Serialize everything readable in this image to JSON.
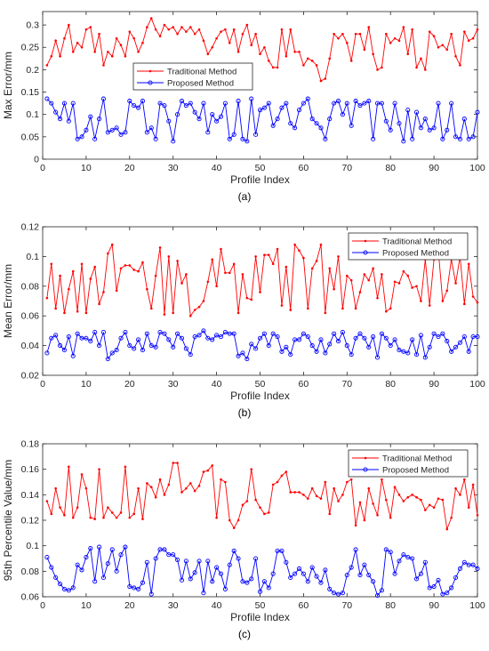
{
  "chart_data": [
    {
      "type": "line",
      "caption": "(a)",
      "xlabel": "Profile Index",
      "ylabel": "Max Error/mm",
      "xlim": [
        0,
        100
      ],
      "ylim": [
        0,
        0.33
      ],
      "xticks": [
        0,
        10,
        20,
        30,
        40,
        50,
        60,
        70,
        80,
        90,
        100
      ],
      "yticks": [
        0,
        0.05,
        0.1,
        0.15,
        0.2,
        0.25,
        0.3
      ],
      "legend": "top-center",
      "grid": false,
      "x": [
        1,
        2,
        3,
        4,
        5,
        6,
        7,
        8,
        9,
        10,
        11,
        12,
        13,
        14,
        15,
        16,
        17,
        18,
        19,
        20,
        21,
        22,
        23,
        24,
        25,
        26,
        27,
        28,
        29,
        30,
        31,
        32,
        33,
        34,
        35,
        36,
        37,
        38,
        39,
        40,
        41,
        42,
        43,
        44,
        45,
        46,
        47,
        48,
        49,
        50,
        51,
        52,
        53,
        54,
        55,
        56,
        57,
        58,
        59,
        60,
        61,
        62,
        63,
        64,
        65,
        66,
        67,
        68,
        69,
        70,
        71,
        72,
        73,
        74,
        75,
        76,
        77,
        78,
        79,
        80,
        81,
        82,
        83,
        84,
        85,
        86,
        87,
        88,
        89,
        90,
        91,
        92,
        93,
        94,
        95,
        96,
        97,
        98,
        99,
        100
      ],
      "series": [
        {
          "name": "Traditional Method",
          "color": "#ff0000",
          "marker": "dot",
          "values": [
            0.21,
            0.23,
            0.265,
            0.23,
            0.27,
            0.3,
            0.24,
            0.26,
            0.25,
            0.29,
            0.295,
            0.24,
            0.28,
            0.21,
            0.24,
            0.23,
            0.27,
            0.255,
            0.23,
            0.285,
            0.27,
            0.24,
            0.26,
            0.295,
            0.315,
            0.29,
            0.275,
            0.3,
            0.29,
            0.295,
            0.28,
            0.295,
            0.285,
            0.295,
            0.28,
            0.29,
            0.265,
            0.235,
            0.25,
            0.27,
            0.285,
            0.29,
            0.26,
            0.29,
            0.24,
            0.28,
            0.3,
            0.255,
            0.28,
            0.235,
            0.25,
            0.22,
            0.205,
            0.205,
            0.29,
            0.23,
            0.29,
            0.24,
            0.24,
            0.21,
            0.225,
            0.22,
            0.21,
            0.175,
            0.18,
            0.225,
            0.28,
            0.27,
            0.28,
            0.26,
            0.22,
            0.28,
            0.28,
            0.245,
            0.295,
            0.235,
            0.2,
            0.205,
            0.28,
            0.26,
            0.27,
            0.265,
            0.295,
            0.235,
            0.29,
            0.205,
            0.225,
            0.2,
            0.285,
            0.275,
            0.25,
            0.255,
            0.245,
            0.28,
            0.23,
            0.21,
            0.285,
            0.265,
            0.27,
            0.29
          ]
        },
        {
          "name": "Proposed Method",
          "color": "#0000ff",
          "marker": "circle",
          "values": [
            0.135,
            0.125,
            0.105,
            0.09,
            0.125,
            0.085,
            0.125,
            0.045,
            0.05,
            0.065,
            0.095,
            0.045,
            0.09,
            0.135,
            0.06,
            0.065,
            0.07,
            0.055,
            0.06,
            0.13,
            0.12,
            0.115,
            0.13,
            0.06,
            0.07,
            0.045,
            0.125,
            0.12,
            0.085,
            0.04,
            0.1,
            0.13,
            0.12,
            0.125,
            0.105,
            0.09,
            0.125,
            0.06,
            0.1,
            0.085,
            0.095,
            0.125,
            0.045,
            0.055,
            0.13,
            0.045,
            0.04,
            0.135,
            0.055,
            0.11,
            0.115,
            0.125,
            0.075,
            0.09,
            0.115,
            0.125,
            0.08,
            0.07,
            0.11,
            0.125,
            0.135,
            0.09,
            0.08,
            0.07,
            0.045,
            0.09,
            0.125,
            0.13,
            0.1,
            0.125,
            0.075,
            0.13,
            0.12,
            0.125,
            0.13,
            0.045,
            0.125,
            0.125,
            0.085,
            0.065,
            0.125,
            0.08,
            0.04,
            0.11,
            0.045,
            0.105,
            0.07,
            0.09,
            0.065,
            0.07,
            0.125,
            0.045,
            0.065,
            0.125,
            0.05,
            0.045,
            0.09,
            0.045,
            0.05,
            0.105
          ]
        }
      ]
    },
    {
      "type": "line",
      "caption": "(b)",
      "xlabel": "Profile Index",
      "ylabel": "Mean Error/mm",
      "xlim": [
        0,
        100
      ],
      "ylim": [
        0.02,
        0.12
      ],
      "xticks": [
        0,
        10,
        20,
        30,
        40,
        50,
        60,
        70,
        80,
        90,
        100
      ],
      "yticks": [
        0.02,
        0.04,
        0.06,
        0.08,
        0.1,
        0.12
      ],
      "legend": "top-right",
      "grid": false,
      "x": [
        1,
        2,
        3,
        4,
        5,
        6,
        7,
        8,
        9,
        10,
        11,
        12,
        13,
        14,
        15,
        16,
        17,
        18,
        19,
        20,
        21,
        22,
        23,
        24,
        25,
        26,
        27,
        28,
        29,
        30,
        31,
        32,
        33,
        34,
        35,
        36,
        37,
        38,
        39,
        40,
        41,
        42,
        43,
        44,
        45,
        46,
        47,
        48,
        49,
        50,
        51,
        52,
        53,
        54,
        55,
        56,
        57,
        58,
        59,
        60,
        61,
        62,
        63,
        64,
        65,
        66,
        67,
        68,
        69,
        70,
        71,
        72,
        73,
        74,
        75,
        76,
        77,
        78,
        79,
        80,
        81,
        82,
        83,
        84,
        85,
        86,
        87,
        88,
        89,
        90,
        91,
        92,
        93,
        94,
        95,
        96,
        97,
        98,
        99,
        100
      ],
      "series": [
        {
          "name": "Traditional Method",
          "color": "#ff0000",
          "marker": "dot",
          "values": [
            0.072,
            0.095,
            0.065,
            0.087,
            0.062,
            0.078,
            0.09,
            0.063,
            0.095,
            0.062,
            0.085,
            0.093,
            0.068,
            0.076,
            0.102,
            0.108,
            0.077,
            0.092,
            0.094,
            0.094,
            0.091,
            0.09,
            0.096,
            0.078,
            0.065,
            0.087,
            0.106,
            0.061,
            0.1,
            0.062,
            0.097,
            0.082,
            0.088,
            0.06,
            0.064,
            0.066,
            0.07,
            0.083,
            0.098,
            0.08,
            0.105,
            0.089,
            0.089,
            0.095,
            0.062,
            0.088,
            0.072,
            0.071,
            0.1,
            0.076,
            0.101,
            0.101,
            0.095,
            0.105,
            0.067,
            0.093,
            0.064,
            0.108,
            0.104,
            0.099,
            0.065,
            0.092,
            0.097,
            0.108,
            0.062,
            0.092,
            0.078,
            0.1,
            0.065,
            0.087,
            0.084,
            0.065,
            0.076,
            0.088,
            0.084,
            0.092,
            0.072,
            0.088,
            0.063,
            0.065,
            0.083,
            0.082,
            0.09,
            0.087,
            0.079,
            0.08,
            0.07,
            0.098,
            0.067,
            0.098,
            0.104,
            0.07,
            0.077,
            0.098,
            0.082,
            0.1,
            0.068,
            0.095,
            0.073,
            0.069
          ]
        },
        {
          "name": "Proposed Method",
          "color": "#0000ff",
          "marker": "circle",
          "values": [
            0.035,
            0.045,
            0.047,
            0.04,
            0.037,
            0.046,
            0.033,
            0.048,
            0.045,
            0.045,
            0.043,
            0.049,
            0.04,
            0.049,
            0.031,
            0.035,
            0.037,
            0.045,
            0.049,
            0.04,
            0.038,
            0.044,
            0.037,
            0.048,
            0.04,
            0.039,
            0.049,
            0.048,
            0.044,
            0.039,
            0.048,
            0.045,
            0.038,
            0.034,
            0.046,
            0.047,
            0.05,
            0.045,
            0.044,
            0.047,
            0.046,
            0.049,
            0.048,
            0.048,
            0.033,
            0.035,
            0.031,
            0.041,
            0.038,
            0.045,
            0.048,
            0.04,
            0.048,
            0.046,
            0.036,
            0.039,
            0.034,
            0.044,
            0.044,
            0.048,
            0.046,
            0.04,
            0.036,
            0.044,
            0.035,
            0.041,
            0.048,
            0.043,
            0.049,
            0.04,
            0.034,
            0.045,
            0.048,
            0.045,
            0.039,
            0.046,
            0.032,
            0.048,
            0.045,
            0.04,
            0.044,
            0.037,
            0.036,
            0.035,
            0.044,
            0.034,
            0.047,
            0.032,
            0.039,
            0.048,
            0.046,
            0.048,
            0.043,
            0.036,
            0.039,
            0.042,
            0.046,
            0.036,
            0.046,
            0.046
          ]
        }
      ]
    },
    {
      "type": "line",
      "caption": "(c)",
      "xlabel": "Profile Index",
      "ylabel": "95th Percentile Value/mm",
      "xlim": [
        0,
        100
      ],
      "ylim": [
        0.06,
        0.18
      ],
      "xticks": [
        0,
        10,
        20,
        30,
        40,
        50,
        60,
        70,
        80,
        90,
        100
      ],
      "yticks": [
        0.06,
        0.08,
        0.1,
        0.12,
        0.14,
        0.16,
        0.18
      ],
      "legend": "top-right",
      "grid": false,
      "x": [
        1,
        2,
        3,
        4,
        5,
        6,
        7,
        8,
        9,
        10,
        11,
        12,
        13,
        14,
        15,
        16,
        17,
        18,
        19,
        20,
        21,
        22,
        23,
        24,
        25,
        26,
        27,
        28,
        29,
        30,
        31,
        32,
        33,
        34,
        35,
        36,
        37,
        38,
        39,
        40,
        41,
        42,
        43,
        44,
        45,
        46,
        47,
        48,
        49,
        50,
        51,
        52,
        53,
        54,
        55,
        56,
        57,
        58,
        59,
        60,
        61,
        62,
        63,
        64,
        65,
        66,
        67,
        68,
        69,
        70,
        71,
        72,
        73,
        74,
        75,
        76,
        77,
        78,
        79,
        80,
        81,
        82,
        83,
        84,
        85,
        86,
        87,
        88,
        89,
        90,
        91,
        92,
        93,
        94,
        95,
        96,
        97,
        98,
        99,
        100
      ],
      "series": [
        {
          "name": "Traditional Method",
          "color": "#ff0000",
          "marker": "dot",
          "values": [
            0.135,
            0.125,
            0.145,
            0.13,
            0.124,
            0.162,
            0.122,
            0.13,
            0.156,
            0.145,
            0.122,
            0.121,
            0.16,
            0.122,
            0.13,
            0.126,
            0.122,
            0.126,
            0.162,
            0.122,
            0.125,
            0.145,
            0.121,
            0.149,
            0.146,
            0.138,
            0.152,
            0.14,
            0.148,
            0.165,
            0.165,
            0.142,
            0.145,
            0.149,
            0.143,
            0.147,
            0.158,
            0.159,
            0.163,
            0.122,
            0.152,
            0.15,
            0.12,
            0.114,
            0.12,
            0.132,
            0.135,
            0.16,
            0.136,
            0.13,
            0.125,
            0.126,
            0.148,
            0.15,
            0.155,
            0.158,
            0.142,
            0.142,
            0.142,
            0.14,
            0.137,
            0.145,
            0.139,
            0.137,
            0.15,
            0.125,
            0.145,
            0.135,
            0.14,
            0.15,
            0.152,
            0.116,
            0.134,
            0.12,
            0.145,
            0.133,
            0.124,
            0.152,
            0.136,
            0.122,
            0.146,
            0.14,
            0.135,
            0.138,
            0.14,
            0.138,
            0.136,
            0.128,
            0.132,
            0.13,
            0.137,
            0.136,
            0.113,
            0.122,
            0.145,
            0.14,
            0.152,
            0.13,
            0.148,
            0.124
          ]
        },
        {
          "name": "Proposed Method",
          "color": "#0000ff",
          "marker": "circle",
          "values": [
            0.091,
            0.083,
            0.075,
            0.07,
            0.066,
            0.065,
            0.067,
            0.085,
            0.081,
            0.091,
            0.098,
            0.072,
            0.099,
            0.075,
            0.086,
            0.097,
            0.08,
            0.093,
            0.099,
            0.068,
            0.067,
            0.066,
            0.071,
            0.087,
            0.062,
            0.09,
            0.097,
            0.097,
            0.093,
            0.093,
            0.089,
            0.073,
            0.088,
            0.074,
            0.079,
            0.088,
            0.063,
            0.088,
            0.072,
            0.083,
            0.078,
            0.066,
            0.085,
            0.096,
            0.09,
            0.072,
            0.071,
            0.074,
            0.09,
            0.064,
            0.072,
            0.067,
            0.078,
            0.096,
            0.096,
            0.087,
            0.075,
            0.078,
            0.082,
            0.078,
            0.072,
            0.083,
            0.076,
            0.071,
            0.081,
            0.066,
            0.063,
            0.062,
            0.063,
            0.077,
            0.083,
            0.097,
            0.077,
            0.085,
            0.077,
            0.072,
            0.061,
            0.065,
            0.097,
            0.095,
            0.078,
            0.088,
            0.093,
            0.091,
            0.09,
            0.074,
            0.078,
            0.087,
            0.067,
            0.068,
            0.073,
            0.062,
            0.063,
            0.067,
            0.075,
            0.082,
            0.087,
            0.085,
            0.085,
            0.082
          ]
        }
      ]
    }
  ]
}
